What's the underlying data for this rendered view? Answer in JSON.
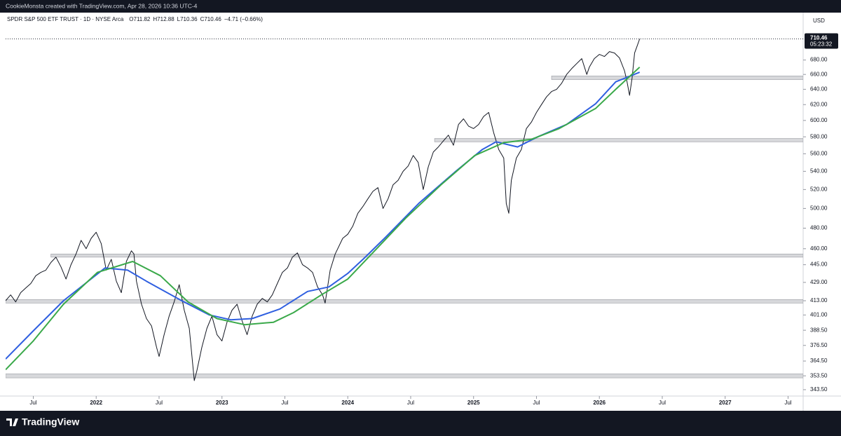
{
  "credit": "CookieMonsta created with TradingView.com, Apr 28, 2026 10:36 UTC-4",
  "chart_data": {
    "type": "line",
    "symbol": "SPDR S&P 500 ETF TRUST · 1D · NYSE Arca",
    "ohlc": [
      "O711.82",
      "H712.88",
      "L710.36",
      "C710.46",
      "−4.71 (−0.66%)"
    ],
    "currency": "USD",
    "last_price": 710.46,
    "countdown": "05:23:32",
    "log_scale": true,
    "xlim": [
      2021.28,
      2027.62
    ],
    "ylim": [
      339,
      748
    ],
    "xticks": [
      {
        "value": 2021.5,
        "label": "Jul"
      },
      2022,
      {
        "value": 2022.5,
        "label": "Jul"
      },
      2023,
      {
        "value": 2023.5,
        "label": "Jul"
      },
      2024,
      {
        "value": 2024.5,
        "label": "Jul"
      },
      2025,
      {
        "value": 2025.5,
        "label": "Jul"
      },
      2026,
      {
        "value": 2026.5,
        "label": "Jul"
      },
      2027,
      {
        "value": 2027.5,
        "label": "Jul"
      }
    ],
    "yticks": [
      {
        "value": 343.5,
        "label": "343.50"
      },
      {
        "value": 353.5,
        "label": "353.50"
      },
      {
        "value": 364.5,
        "label": "364.50"
      },
      {
        "value": 376.5,
        "label": "376.50"
      },
      {
        "value": 388.5,
        "label": "388.50"
      },
      {
        "value": 401,
        "label": "401.00"
      },
      {
        "value": 413,
        "label": "413.00"
      },
      {
        "value": 429,
        "label": "429.00"
      },
      {
        "value": 445,
        "label": "445.00"
      },
      {
        "value": 460,
        "label": "460.00"
      },
      {
        "value": 480,
        "label": "480.00"
      },
      {
        "value": 500,
        "label": "500.00"
      },
      {
        "value": 520,
        "label": "520.00"
      },
      {
        "value": 540,
        "label": "540.00"
      },
      {
        "value": 560,
        "label": "560.00"
      },
      {
        "value": 580,
        "label": "580.00"
      },
      {
        "value": 600,
        "label": "600.00"
      },
      {
        "value": 620,
        "label": "620.00"
      },
      {
        "value": 640,
        "label": "640.00"
      },
      {
        "value": 660,
        "label": "660.00"
      },
      {
        "value": 680,
        "label": "680.00"
      }
    ],
    "zones": [
      {
        "from": 2025.62,
        "low": 653,
        "high": 658
      },
      {
        "from": 2024.69,
        "low": 574,
        "high": 578
      },
      {
        "from": 2021.64,
        "low": 452,
        "high": 455
      },
      {
        "from": 2021.28,
        "low": 411,
        "high": 414
      },
      {
        "from": 2021.28,
        "low": 352,
        "high": 355
      }
    ],
    "series": [
      {
        "color": "#131722",
        "x": [
          2021.28,
          2021.32,
          2021.36,
          2021.4,
          2021.44,
          2021.48,
          2021.52,
          2021.56,
          2021.6,
          2021.64,
          2021.68,
          2021.72,
          2021.76,
          2021.8,
          2021.84,
          2021.88,
          2021.92,
          2021.96,
          2022.0,
          2022.04,
          2022.08,
          2022.12,
          2022.16,
          2022.2,
          2022.24,
          2022.28,
          2022.3,
          2022.32,
          2022.36,
          2022.4,
          2022.44,
          2022.48,
          2022.5,
          2022.54,
          2022.58,
          2022.62,
          2022.66,
          2022.7,
          2022.74,
          2022.78,
          2022.8,
          2022.84,
          2022.88,
          2022.92,
          2022.96,
          2023.0,
          2023.04,
          2023.08,
          2023.12,
          2023.16,
          2023.2,
          2023.24,
          2023.28,
          2023.32,
          2023.36,
          2023.4,
          2023.44,
          2023.48,
          2023.52,
          2023.56,
          2023.6,
          2023.64,
          2023.68,
          2023.72,
          2023.76,
          2023.8,
          2023.82,
          2023.86,
          2023.9,
          2023.96,
          2024.0,
          2024.04,
          2024.08,
          2024.12,
          2024.16,
          2024.2,
          2024.24,
          2024.28,
          2024.32,
          2024.36,
          2024.4,
          2024.44,
          2024.48,
          2024.52,
          2024.56,
          2024.6,
          2024.64,
          2024.68,
          2024.72,
          2024.76,
          2024.8,
          2024.84,
          2024.88,
          2024.92,
          2024.96,
          2025.0,
          2025.04,
          2025.08,
          2025.12,
          2025.16,
          2025.2,
          2025.24,
          2025.26,
          2025.28,
          2025.3,
          2025.34,
          2025.38,
          2025.42,
          2025.46,
          2025.5,
          2025.54,
          2025.58,
          2025.62,
          2025.66,
          2025.7,
          2025.74,
          2025.78,
          2025.82,
          2025.86,
          2025.9,
          2025.92,
          2025.96,
          2026.0,
          2026.04,
          2026.08,
          2026.12,
          2026.16,
          2026.2,
          2026.22,
          2026.24,
          2026.26,
          2026.28,
          2026.3,
          2026.32
        ],
        "values": [
          413,
          418,
          412,
          420,
          424,
          428,
          435,
          438,
          440,
          447,
          452,
          443,
          432,
          445,
          455,
          468,
          460,
          470,
          476,
          465,
          440,
          450,
          430,
          420,
          448,
          458,
          455,
          430,
          410,
          398,
          392,
          375,
          368,
          385,
          400,
          412,
          427,
          405,
          390,
          350,
          357,
          375,
          390,
          400,
          385,
          380,
          395,
          405,
          410,
          396,
          385,
          400,
          410,
          415,
          412,
          418,
          428,
          438,
          442,
          452,
          456,
          445,
          442,
          438,
          425,
          418,
          411,
          440,
          455,
          470,
          474,
          482,
          495,
          502,
          510,
          518,
          522,
          500,
          510,
          525,
          530,
          540,
          546,
          558,
          550,
          520,
          545,
          562,
          568,
          575,
          582,
          570,
          595,
          602,
          593,
          590,
          595,
          605,
          610,
          585,
          565,
          555,
          505,
          495,
          530,
          555,
          565,
          590,
          598,
          610,
          620,
          630,
          637,
          640,
          648,
          660,
          668,
          675,
          682,
          660,
          670,
          682,
          688,
          685,
          692,
          690,
          683,
          665,
          650,
          632,
          655,
          690,
          700,
          710.46
        ]
      },
      {
        "color": "#2f5fe0",
        "x": [
          2021.28,
          2021.5,
          2021.74,
          2022.07,
          2022.25,
          2022.4,
          2022.68,
          2022.9,
          2023.07,
          2023.24,
          2023.46,
          2023.68,
          2023.85,
          2024.0,
          2024.13,
          2024.3,
          2024.57,
          2024.85,
          2025.07,
          2025.18,
          2025.35,
          2025.51,
          2025.74,
          2025.97,
          2026.13,
          2026.32
        ],
        "values": [
          366,
          388,
          413,
          442,
          440,
          430,
          413,
          401,
          397,
          398,
          406,
          421,
          425,
          437,
          451,
          471,
          506,
          539,
          565,
          574,
          568,
          580,
          595,
          621,
          650,
          663
        ]
      },
      {
        "color": "#3aa94a",
        "x": [
          2021.28,
          2021.5,
          2021.74,
          2022.01,
          2022.29,
          2022.51,
          2022.73,
          2022.96,
          2023.18,
          2023.41,
          2023.57,
          2023.79,
          2024.0,
          2024.19,
          2024.46,
          2024.74,
          2025.01,
          2025.24,
          2025.46,
          2025.68,
          2025.97,
          2026.13,
          2026.32
        ],
        "values": [
          358,
          380,
          410,
          438,
          448,
          435,
          412,
          398,
          393,
          395,
          403,
          418,
          432,
          455,
          490,
          525,
          558,
          573,
          577,
          590,
          615,
          640,
          670
        ]
      }
    ]
  },
  "footer": "TradingView"
}
